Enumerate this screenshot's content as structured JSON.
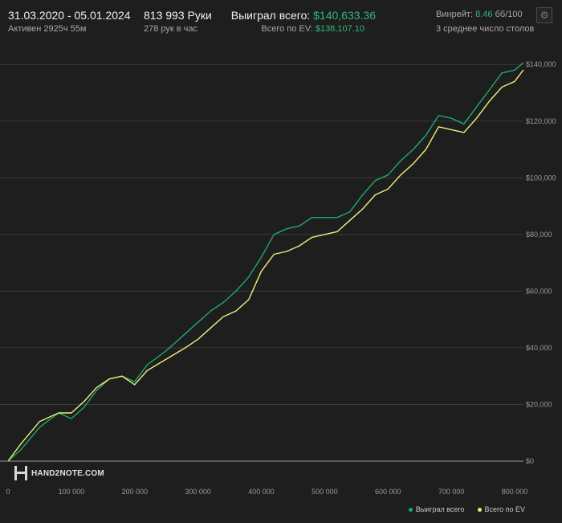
{
  "header": {
    "date_range": "31.03.2020 - 05.01.2024",
    "active_time": "Активен 2925ч 55м",
    "hands": "813 993 Руки",
    "hands_per_hour": "278 рук в час",
    "won_label": "Выиграл всего:",
    "won_value": "$140,633.36",
    "ev_label": "Всего по EV:",
    "ev_value": "$138,107.10",
    "winrate_label": "Винрейт:",
    "winrate_value": "8.46",
    "winrate_unit": "бб/100",
    "tables": "3 среднее число столов"
  },
  "settings_icon": "gear-icon",
  "brand": {
    "logo_icon": "hand2note-logo-icon",
    "name": "HAND2NOTE.COM"
  },
  "colors": {
    "won": "#1fa86e",
    "ev": "#eef07a",
    "background": "#1e1e1e",
    "grid": "#3a3a3a",
    "accent_green": "#2fb87a"
  },
  "chart_data": {
    "type": "line",
    "xlim": [
      0,
      813993
    ],
    "ylim": [
      0,
      140633.36
    ],
    "x_ticks": [
      0,
      100000,
      200000,
      300000,
      400000,
      500000,
      600000,
      700000,
      800000
    ],
    "x_tick_labels": [
      "0",
      "100 000",
      "200 000",
      "300 000",
      "400 000",
      "500 000",
      "600 000",
      "700 000",
      "800 000"
    ],
    "y_ticks": [
      0,
      20000,
      40000,
      60000,
      80000,
      100000,
      120000,
      140000
    ],
    "y_tick_labels": [
      "$0",
      "$20,000",
      "$40,000",
      "$60,000",
      "$80,000",
      "$100,000",
      "$120,000",
      "$140,000"
    ],
    "grid": true,
    "legend": "bottom-right",
    "series": [
      {
        "name": "Выиграл всего",
        "color": "#1fa86e",
        "x": [
          0,
          20000,
          50000,
          80000,
          100000,
          120000,
          140000,
          160000,
          180000,
          200000,
          220000,
          250000,
          280000,
          300000,
          320000,
          340000,
          360000,
          380000,
          400000,
          420000,
          440000,
          460000,
          480000,
          500000,
          520000,
          540000,
          560000,
          580000,
          600000,
          620000,
          640000,
          660000,
          680000,
          700000,
          720000,
          740000,
          760000,
          780000,
          800000,
          813993
        ],
        "y": [
          0,
          4000,
          12000,
          17000,
          15000,
          19000,
          25000,
          29000,
          30000,
          28000,
          34000,
          39000,
          45000,
          49000,
          53000,
          56000,
          60000,
          65000,
          72000,
          80000,
          82000,
          83000,
          86000,
          86000,
          86000,
          88000,
          94000,
          99000,
          101000,
          106000,
          110000,
          115000,
          122000,
          121000,
          119000,
          125000,
          131000,
          137000,
          138000,
          140633.36
        ]
      },
      {
        "name": "Всего по EV",
        "color": "#eef07a",
        "x": [
          0,
          20000,
          50000,
          80000,
          100000,
          120000,
          140000,
          160000,
          180000,
          200000,
          220000,
          250000,
          280000,
          300000,
          320000,
          340000,
          360000,
          380000,
          400000,
          420000,
          440000,
          460000,
          480000,
          500000,
          520000,
          540000,
          560000,
          580000,
          600000,
          620000,
          640000,
          660000,
          680000,
          700000,
          720000,
          740000,
          760000,
          780000,
          800000,
          813993
        ],
        "y": [
          0,
          6000,
          14000,
          17000,
          17000,
          21000,
          26000,
          29000,
          30000,
          27000,
          32000,
          36000,
          40000,
          43000,
          47000,
          51000,
          53000,
          57000,
          67000,
          73000,
          74000,
          76000,
          79000,
          80000,
          81000,
          85000,
          89000,
          94000,
          96000,
          101000,
          105000,
          110000,
          118000,
          117000,
          116000,
          121000,
          127000,
          132000,
          134000,
          138107.1
        ]
      }
    ]
  }
}
